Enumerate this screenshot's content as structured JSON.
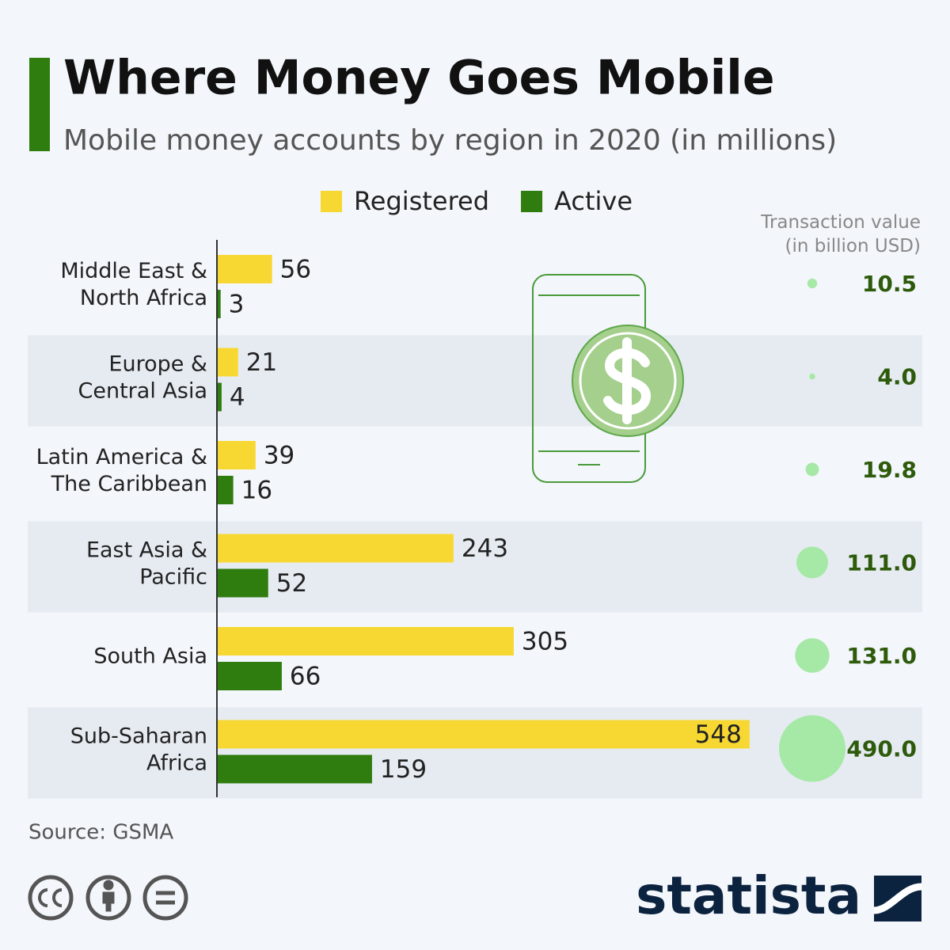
{
  "chart_data": {
    "type": "bar",
    "title": "Where Money Goes Mobile",
    "subtitle": "Mobile money accounts by region in 2020 (in millions)",
    "categories": [
      "Middle East &\nNorth Africa",
      "Europe &\nCentral Asia",
      "Latin America &\nThe Caribbean",
      "East Asia &\nPacific",
      "South Asia",
      "Sub-Saharan\nAfrica"
    ],
    "series": [
      {
        "name": "Registered",
        "color": "#f7d832",
        "values": [
          56,
          21,
          39,
          243,
          305,
          548
        ]
      },
      {
        "name": "Active",
        "color": "#2e7d0e",
        "values": [
          3,
          4,
          16,
          52,
          66,
          159
        ]
      }
    ],
    "bubbles": {
      "title": "Transaction value\n(in billion USD)",
      "color": "#a6e8a6",
      "values": [
        10.5,
        4,
        19.8,
        111,
        131,
        490
      ],
      "value_labels": [
        "10.5",
        "4.0",
        "19.8",
        "111.0",
        "131.0",
        "490.0"
      ]
    },
    "source": "Source: GSMA",
    "brand": "statista"
  }
}
